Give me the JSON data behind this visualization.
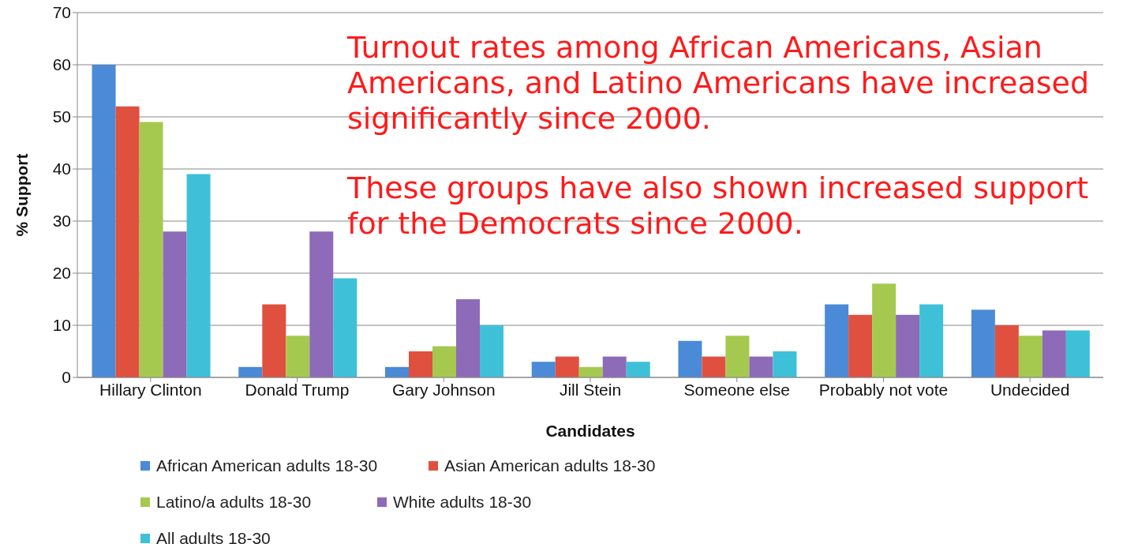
{
  "chart_data": {
    "type": "bar",
    "xlabel": "Candidates",
    "ylabel": "% Support",
    "categories": [
      "Hillary Clinton",
      "Donald Trump",
      "Gary Johnson",
      "Jill Stein",
      "Someone else",
      "Probably not vote",
      "Undecided"
    ],
    "series": [
      {
        "name": "African American adults 18-30",
        "color": "#4a8ad6",
        "values": [
          60,
          2,
          2,
          3,
          7,
          14,
          13
        ]
      },
      {
        "name": "Asian American adults 18-30",
        "color": "#e0503f",
        "values": [
          52,
          14,
          5,
          4,
          4,
          12,
          10
        ]
      },
      {
        "name": "Latino/a adults 18-30",
        "color": "#a5c94e",
        "values": [
          49,
          8,
          6,
          2,
          8,
          18,
          8
        ]
      },
      {
        "name": "White adults 18-30",
        "color": "#8d6bb8",
        "values": [
          28,
          28,
          15,
          4,
          4,
          12,
          9
        ]
      },
      {
        "name": "All adults 18-30",
        "color": "#3fc0d9",
        "values": [
          39,
          19,
          10,
          3,
          5,
          14,
          9
        ]
      }
    ],
    "ylim": [
      0,
      70
    ],
    "yticks": [
      0,
      10,
      20,
      30,
      40,
      50,
      60,
      70
    ],
    "grid": "y",
    "legend": "bottom",
    "annotations": [
      "Turnout rates among African Americans, Asian Americans, and Latino Americans have increased significantly since 2000.",
      "These groups have also shown increased support for the Democrats since 2000."
    ]
  }
}
